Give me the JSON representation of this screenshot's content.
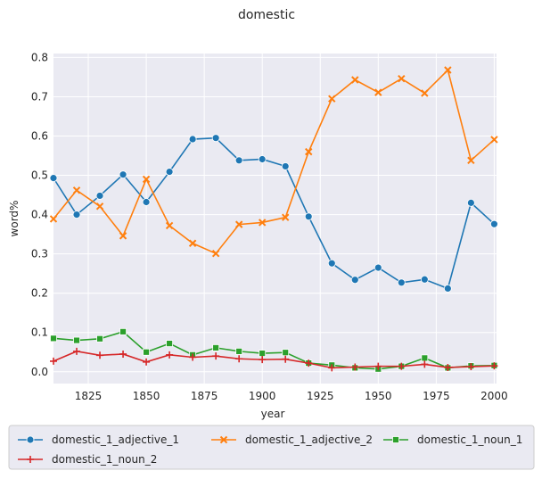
{
  "chart_data": {
    "type": "line",
    "title": "domestic",
    "xlabel": "year",
    "ylabel": "word%",
    "xlim": [
      1810,
      2001
    ],
    "ylim": [
      -0.03,
      0.81
    ],
    "xticks": [
      1825,
      1850,
      1875,
      1900,
      1925,
      1950,
      1975,
      2000
    ],
    "yticks": [
      0.0,
      0.1,
      0.2,
      0.3,
      0.4,
      0.5,
      0.6,
      0.7,
      0.8
    ],
    "grid": true,
    "legend_position": "below",
    "x": [
      1810,
      1820,
      1830,
      1840,
      1850,
      1860,
      1870,
      1880,
      1890,
      1900,
      1910,
      1920,
      1930,
      1940,
      1950,
      1960,
      1970,
      1980,
      1990,
      2000
    ],
    "series": [
      {
        "name": "domestic_1_adjective_1",
        "color": "#1f77b4",
        "marker": "circle",
        "values": [
          0.493,
          0.4,
          0.448,
          0.502,
          0.432,
          0.509,
          0.592,
          0.595,
          0.538,
          0.541,
          0.523,
          0.395,
          0.276,
          0.234,
          0.265,
          0.227,
          0.235,
          0.212,
          0.43,
          0.376
        ]
      },
      {
        "name": "domestic_1_adjective_2",
        "color": "#ff7f0e",
        "marker": "x",
        "values": [
          0.389,
          0.462,
          0.421,
          0.346,
          0.49,
          0.372,
          0.327,
          0.301,
          0.375,
          0.38,
          0.393,
          0.56,
          0.695,
          0.743,
          0.711,
          0.746,
          0.709,
          0.768,
          0.538,
          0.591
        ]
      },
      {
        "name": "domestic_1_noun_1",
        "color": "#2ca02c",
        "marker": "square",
        "values": [
          0.085,
          0.08,
          0.084,
          0.102,
          0.05,
          0.072,
          0.043,
          0.061,
          0.052,
          0.047,
          0.049,
          0.022,
          0.017,
          0.01,
          0.007,
          0.014,
          0.035,
          0.01,
          0.015,
          0.016
        ]
      },
      {
        "name": "domestic_1_noun_2",
        "color": "#d62728",
        "marker": "plus",
        "values": [
          0.027,
          0.052,
          0.042,
          0.045,
          0.025,
          0.043,
          0.037,
          0.04,
          0.033,
          0.031,
          0.032,
          0.022,
          0.01,
          0.012,
          0.014,
          0.014,
          0.019,
          0.011,
          0.013,
          0.015
        ]
      }
    ]
  }
}
